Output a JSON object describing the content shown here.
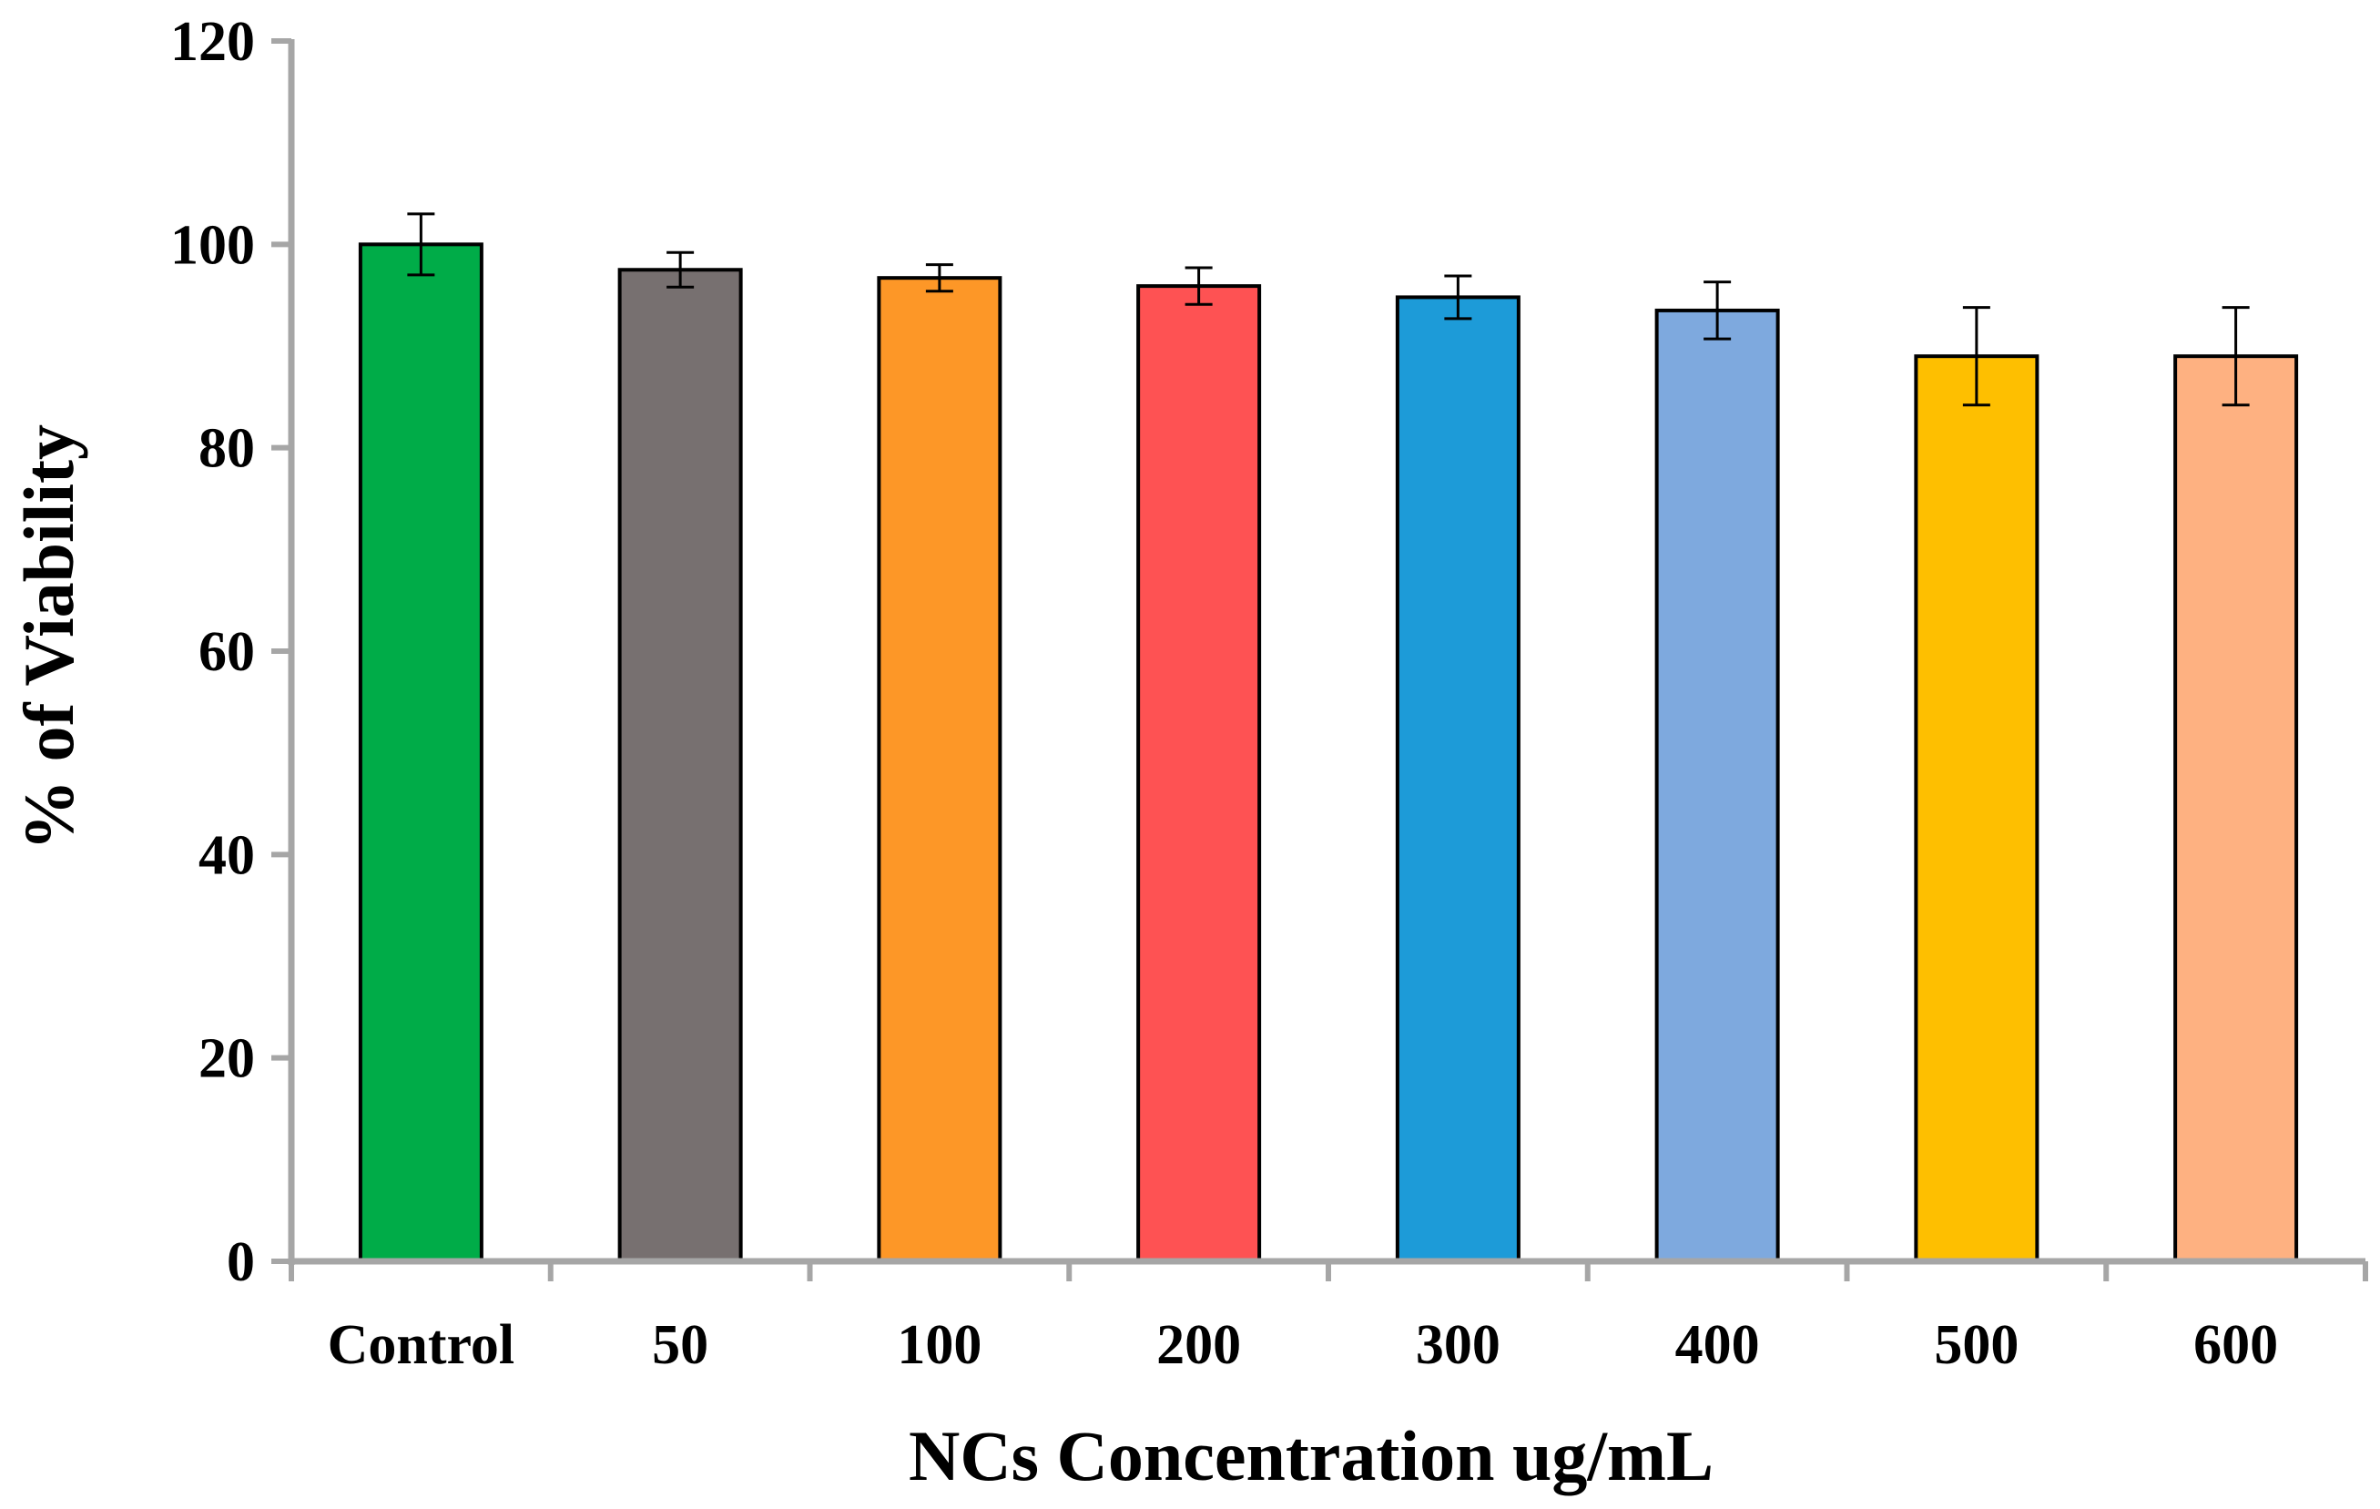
{
  "chart_data": {
    "type": "bar",
    "title": "",
    "xlabel": "NCs Concentration ug/mL",
    "ylabel": "% of Viability",
    "categories": [
      "Control",
      "50",
      "100",
      "200",
      "300",
      "400",
      "500",
      "600"
    ],
    "values": [
      100,
      97.5,
      96.7,
      95.9,
      94.8,
      93.5,
      89.0,
      89.0
    ],
    "errors": [
      3.0,
      1.7,
      1.3,
      1.8,
      2.1,
      2.8,
      4.8,
      4.8
    ],
    "colors": [
      "#00AC48",
      "#777070",
      "#FD9727",
      "#FE5253",
      "#1D9BD8",
      "#7EA9DE",
      "#FEBF00",
      "#FEB181"
    ],
    "ylim": [
      0,
      120
    ],
    "yticks": [
      0,
      20,
      40,
      60,
      80,
      100,
      120
    ],
    "grid": false,
    "axis_color": "#A6A6A6"
  }
}
